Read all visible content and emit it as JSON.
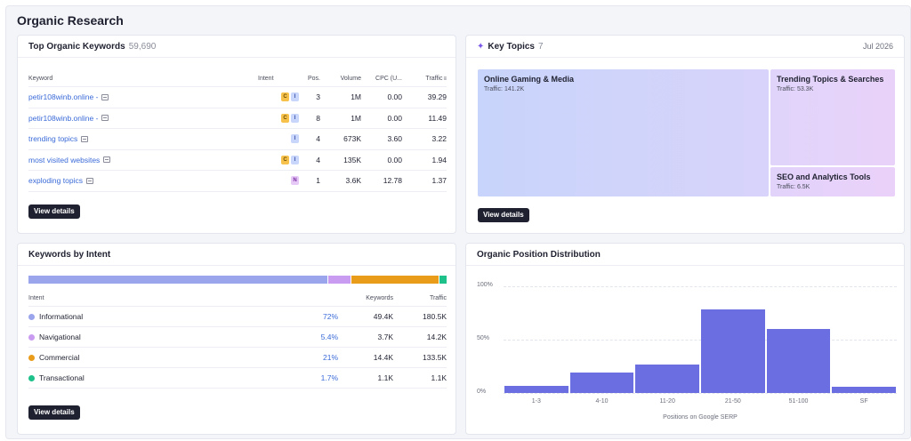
{
  "page": {
    "title": "Organic Research"
  },
  "top_keywords": {
    "title": "Top Organic Keywords",
    "count": "59,690",
    "headers": {
      "keyword": "Keyword",
      "intent": "Intent",
      "pos": "Pos.",
      "volume": "Volume",
      "cpc": "CPC (U...",
      "traffic": "Traffic"
    },
    "rows": [
      {
        "keyword": "petir108winb.online -",
        "intents": [
          "C",
          "I"
        ],
        "pos": "3",
        "volume": "1M",
        "cpc": "0.00",
        "traffic": "39.29"
      },
      {
        "keyword": "petir108winb.online -",
        "intents": [
          "C",
          "I"
        ],
        "pos": "8",
        "volume": "1M",
        "cpc": "0.00",
        "traffic": "11.49"
      },
      {
        "keyword": "trending topics",
        "intents": [
          "I"
        ],
        "pos": "4",
        "volume": "673K",
        "cpc": "3.60",
        "traffic": "3.22"
      },
      {
        "keyword": "most visited websites",
        "intents": [
          "C",
          "I"
        ],
        "pos": "4",
        "volume": "135K",
        "cpc": "0.00",
        "traffic": "1.94"
      },
      {
        "keyword": "exploding topics",
        "intents": [
          "N"
        ],
        "pos": "1",
        "volume": "3.6K",
        "cpc": "12.78",
        "traffic": "1.37"
      }
    ],
    "button": "View details"
  },
  "key_topics": {
    "title": "Key Topics",
    "count": "7",
    "date": "Jul 2026",
    "topics": [
      {
        "name": "Online Gaming & Media",
        "traffic_label": "Traffic: 141.2K",
        "traffic": 141.2
      },
      {
        "name": "Trending Topics & Searches",
        "traffic_label": "Traffic: 53.3K",
        "traffic": 53.3
      },
      {
        "name": "SEO and Analytics Tools",
        "traffic_label": "Traffic: 6.5K",
        "traffic": 6.5
      }
    ],
    "button": "View details"
  },
  "intent": {
    "title": "Keywords by Intent",
    "headers": {
      "intent": "Intent",
      "keywords": "Keywords",
      "traffic": "Traffic"
    },
    "rows": [
      {
        "name": "Informational",
        "pct": "72%",
        "share": 72,
        "keywords": "49.4K",
        "traffic": "180.5K",
        "color": "#9aa5ec"
      },
      {
        "name": "Navigational",
        "pct": "5.4%",
        "share": 5.4,
        "keywords": "3.7K",
        "traffic": "14.2K",
        "color": "#c99cf1"
      },
      {
        "name": "Commercial",
        "pct": "21%",
        "share": 21,
        "keywords": "14.4K",
        "traffic": "133.5K",
        "color": "#e89c1a"
      },
      {
        "name": "Transactional",
        "pct": "1.7%",
        "share": 1.7,
        "keywords": "1.1K",
        "traffic": "1.1K",
        "color": "#1fc18b"
      }
    ],
    "button": "View details"
  },
  "position_dist": {
    "title": "Organic Position Distribution"
  },
  "chart_data": {
    "type": "bar",
    "categories": [
      "1-3",
      "4-10",
      "11-20",
      "21-50",
      "51-100",
      "SF"
    ],
    "values": [
      7,
      19,
      27,
      78,
      60,
      6
    ],
    "xlabel": "Positions on Google SERP",
    "ylabel": "",
    "ylim": [
      0,
      100
    ],
    "yticks": [
      "100%",
      "50%",
      "0%"
    ],
    "bar_color": "#6b6ee0",
    "grid": true
  }
}
